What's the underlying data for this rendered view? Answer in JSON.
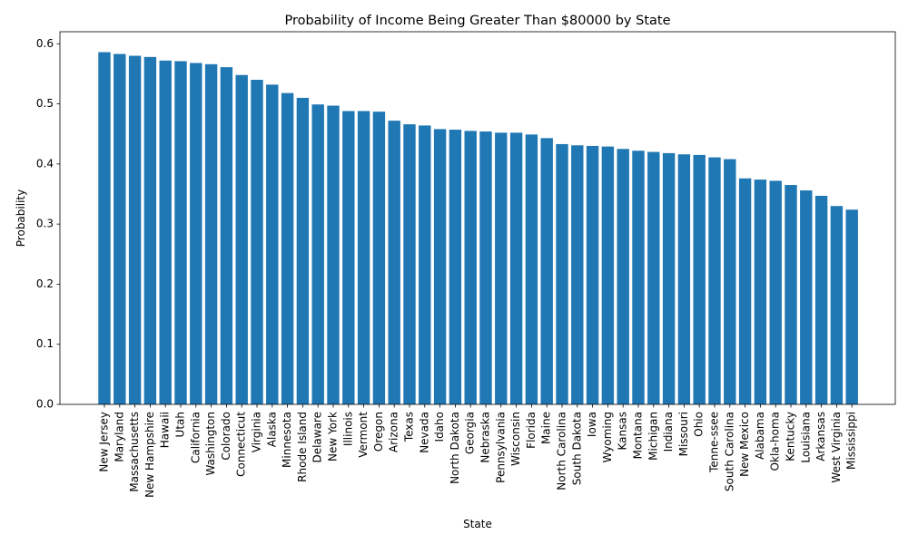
{
  "chart_data": {
    "type": "bar",
    "title": "Probability of Income Being Greater Than $80000 by State",
    "xlabel": "State",
    "ylabel": "Probability",
    "ylim": [
      0,
      0.62
    ],
    "yticks": [
      "0.0",
      "0.1",
      "0.2",
      "0.3",
      "0.4",
      "0.5",
      "0.6"
    ],
    "grid": false,
    "bar_color": "#1f77b4",
    "categories": [
      "New Jersey",
      "Maryland",
      "Massachusetts",
      "New Hampshire",
      "Hawaii",
      "Utah",
      "California",
      "Washington",
      "Colorado",
      "Connecticut",
      "Virginia",
      "Alaska",
      "Minnesota",
      "Rhode Island",
      "Delaware",
      "New York",
      "Illinois",
      "Vermont",
      "Oregon",
      "Arizona",
      "Texas",
      "Nevada",
      "Idaho",
      "North Dakota",
      "Georgia",
      "Nebraska",
      "Pennsylvania",
      "Wisconsin",
      "Florida",
      "Maine",
      "North Carolina",
      "South Dakota",
      "Iowa",
      "Wyoming",
      "Kansas",
      "Montana",
      "Michigan",
      "Indiana",
      "Missouri",
      "Ohio",
      "Tenne-ssee",
      "South Carolina",
      "New Mexico",
      "Alabama",
      "Okla-homa",
      "Kentucky",
      "Louisiana",
      "Arkansas",
      "West Virginia",
      "Mississippi"
    ],
    "values": [
      0.586,
      0.583,
      0.58,
      0.578,
      0.572,
      0.571,
      0.568,
      0.566,
      0.561,
      0.548,
      0.54,
      0.532,
      0.518,
      0.51,
      0.499,
      0.497,
      0.488,
      0.488,
      0.487,
      0.472,
      0.466,
      0.464,
      0.458,
      0.457,
      0.455,
      0.454,
      0.452,
      0.452,
      0.449,
      0.443,
      0.433,
      0.431,
      0.43,
      0.429,
      0.425,
      0.422,
      0.42,
      0.418,
      0.416,
      0.415,
      0.411,
      0.408,
      0.376,
      0.374,
      0.372,
      0.365,
      0.356,
      0.347,
      0.33,
      0.324
    ]
  }
}
